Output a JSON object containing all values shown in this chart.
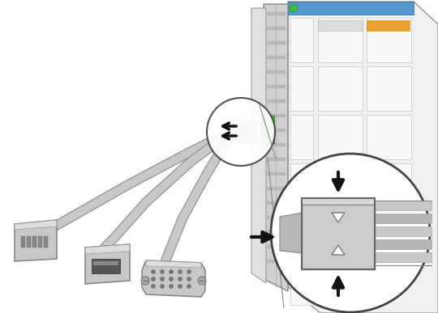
{
  "bg_color": "#ffffff",
  "fig_width": 5.4,
  "fig_height": 3.87,
  "dpi": 100,
  "cable_color": "#c8c8c8",
  "cable_outline": "#999999",
  "connector_color": "#c0c0c0",
  "connector_edge": "#777777",
  "arrow_color": "#111111",
  "green_tab_color": "#66bb55",
  "server_bg": "#eeeeee",
  "server_edge": "#aaaaaa",
  "panel_strip_color": "#d5d5d5",
  "zoom_circle_edge": "#444444",
  "rail_color_a": "#c5c5c5",
  "rail_color_b": "#b5b5b5",
  "block_color": "#cccccc",
  "block_edge": "#888888",
  "left_piece_color": "#b8b8b8"
}
